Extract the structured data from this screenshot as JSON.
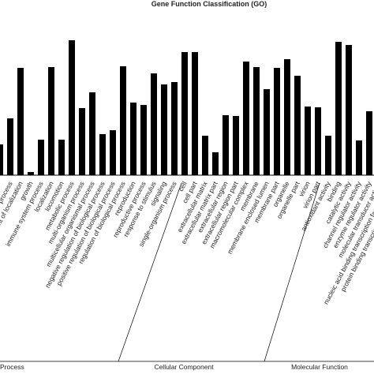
{
  "chart_data": {
    "type": "bar",
    "title": "Gene Function Classification (GO)",
    "categories": [
      null,
      "process",
      "ent of localization",
      "growth",
      "immune system process",
      "localization",
      "locomotion",
      "metabolic process",
      "multi-organism process",
      "multicellular organismal process",
      "negative regulation of biological process",
      "positive regulation of biological process",
      "regulation of biological process",
      "reproduction",
      "reproductive process",
      "response to stimulus",
      "signaling",
      "single-organism process",
      "cell",
      "cell part",
      "extracellular matrix",
      "extracellular matrix part",
      "extracellular region",
      "extracellular region part",
      "macromolecular complex",
      "membrane",
      "membrane enclosed lumen",
      "membrane part",
      "organelle",
      "organelle part",
      "virion",
      "virion part",
      "antioxidant activity",
      "binding",
      "catalytic activity",
      "channel regulator activity",
      "enzyme regulator activity",
      "molecular transducer activity",
      "nucleic acid binding transcription factor activity",
      "protein binding transcription factor activity"
    ],
    "values": [
      39,
      72,
      136,
      4,
      45,
      137,
      45,
      171,
      85,
      105,
      52,
      57,
      138,
      92,
      89,
      129,
      115,
      118,
      156,
      156,
      50,
      29,
      76,
      75,
      144,
      137,
      109,
      136,
      147,
      126,
      87,
      86,
      50,
      169,
      165,
      44,
      81,
      null,
      null,
      null
    ],
    "color": "#000000",
    "ylim": [
      0,
      180
    ],
    "groups": [
      "Process",
      "Cellular Component",
      "Molecular Function"
    ]
  }
}
